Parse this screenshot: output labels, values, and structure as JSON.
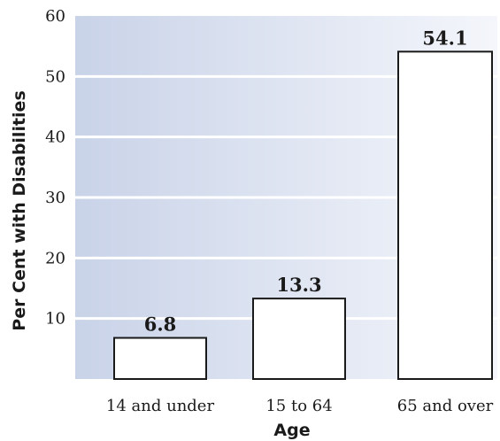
{
  "chart_data": {
    "type": "bar",
    "categories": [
      "14 and under",
      "15 to 64",
      "65 and over"
    ],
    "values": [
      6.8,
      13.3,
      54.1
    ],
    "value_labels": [
      "6.8",
      "13.3",
      "54.1"
    ],
    "title": "",
    "xlabel": "Age",
    "ylabel": "Per Cent with Disabilities",
    "ylim": [
      0,
      60
    ],
    "yticks": [
      10,
      20,
      30,
      40,
      50,
      60
    ],
    "grid": true,
    "legend": "none",
    "colors": {
      "plot_bg_left": "#c9d3e8",
      "plot_bg_right": "#f4f6fb",
      "bar_fill": "#ffffff",
      "bar_stroke": "#1a1a1a",
      "gridline": "#ffffff"
    }
  }
}
